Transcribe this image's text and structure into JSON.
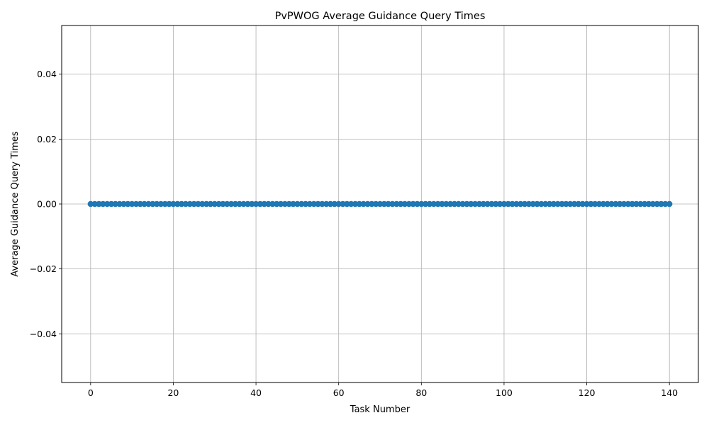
{
  "chart_data": {
    "type": "line",
    "title": "PvPWOG Average Guidance Query Times",
    "xlabel": "Task Number",
    "ylabel": "Average Guidance Query Times",
    "xlim": [
      -7,
      147
    ],
    "ylim": [
      -0.055,
      0.055
    ],
    "xticks": [
      0,
      20,
      40,
      60,
      80,
      100,
      120,
      140
    ],
    "xtick_labels": [
      "0",
      "20",
      "40",
      "60",
      "80",
      "100",
      "120",
      "140"
    ],
    "yticks": [
      -0.04,
      -0.02,
      0.0,
      0.02,
      0.04
    ],
    "ytick_labels": [
      "−0.04",
      "−0.02",
      "0.00",
      "0.02",
      "0.04"
    ],
    "grid": true,
    "marker": "circle",
    "line_color": "#1f77b4",
    "series": [
      {
        "name": "Average Guidance Query Times",
        "x_start": 0,
        "x_end": 140,
        "x_step": 1,
        "y_constant": 0
      }
    ]
  }
}
